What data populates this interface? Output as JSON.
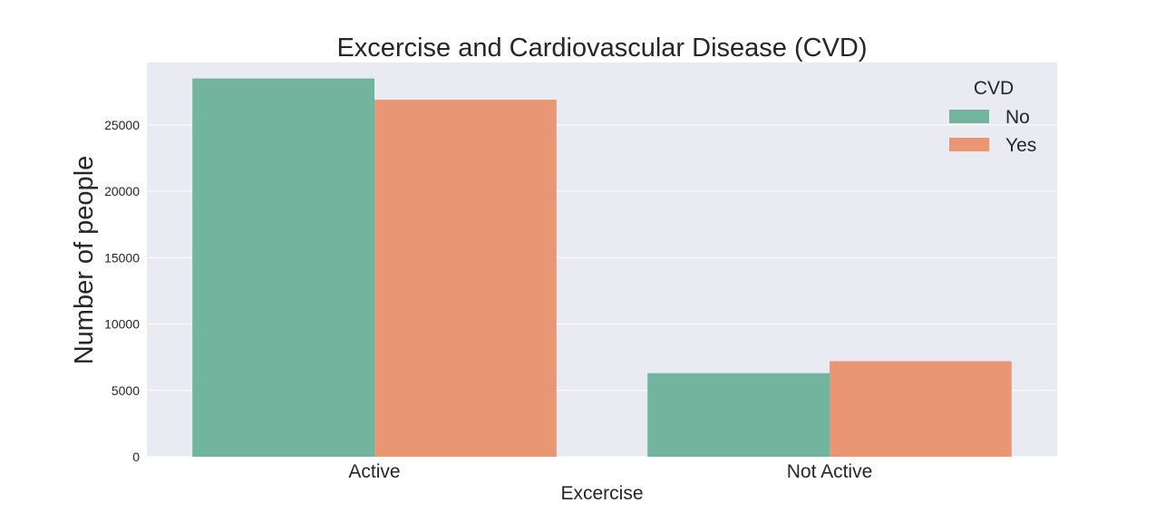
{
  "chart_data": {
    "type": "bar",
    "title": "Excercise and Cardiovascular Disease (CVD)",
    "xlabel": "Excercise",
    "ylabel": "Number of people",
    "categories": [
      "Active",
      "Not Active"
    ],
    "series": [
      {
        "name": "No",
        "color": "#73b49f",
        "values": [
          28500,
          6300
        ]
      },
      {
        "name": "Yes",
        "color": "#e89674",
        "values": [
          26900,
          7200
        ]
      }
    ],
    "ylim": [
      0,
      29700
    ],
    "yticks": [
      0,
      5000,
      10000,
      15000,
      20000,
      25000
    ],
    "grid": true,
    "legend": {
      "title": "CVD",
      "position": "top-right"
    },
    "colors": {
      "plot_background": "#eaeaf2",
      "grid": "#ffffff"
    }
  }
}
